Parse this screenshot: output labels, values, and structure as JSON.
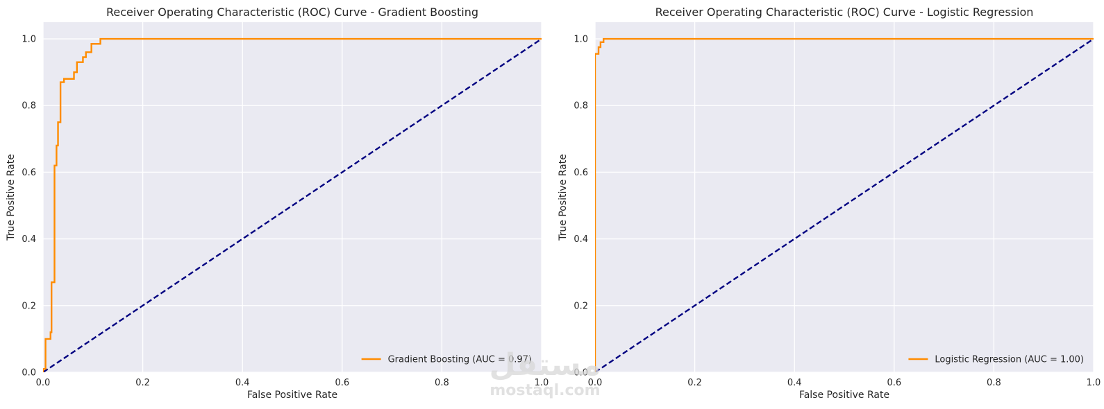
{
  "watermark": {
    "arabic": "مستقل",
    "latin": "mostaql.com"
  },
  "chart_data": [
    {
      "type": "line",
      "title": "Receiver Operating Characteristic (ROC) Curve - Gradient Boosting",
      "xlabel": "False Positive Rate",
      "ylabel": "True Positive Rate",
      "xlim": [
        0,
        1
      ],
      "ylim": [
        0,
        1.05
      ],
      "xticks": [
        "0.0",
        "0.2",
        "0.4",
        "0.6",
        "0.8",
        "1.0"
      ],
      "yticks": [
        "0.0",
        "0.2",
        "0.4",
        "0.6",
        "0.8",
        "1.0"
      ],
      "grid": true,
      "background": "#eaeaf2",
      "legend_position": "lower-right",
      "series": [
        {
          "name": "Gradient Boosting (AUC = 0.97)",
          "color": "#ff8c00",
          "style": "solid",
          "x": [
            0,
            0,
            0.005,
            0.005,
            0.015,
            0.015,
            0.017,
            0.017,
            0.023,
            0.023,
            0.027,
            0.027,
            0.03,
            0.03,
            0.035,
            0.035,
            0.042,
            0.042,
            0.062,
            0.062,
            0.068,
            0.068,
            0.08,
            0.08,
            0.086,
            0.086,
            0.097,
            0.097,
            0.115,
            0.115,
            1.0
          ],
          "y": [
            0,
            0.01,
            0.01,
            0.1,
            0.1,
            0.12,
            0.12,
            0.27,
            0.27,
            0.62,
            0.62,
            0.68,
            0.68,
            0.75,
            0.75,
            0.87,
            0.87,
            0.88,
            0.88,
            0.9,
            0.9,
            0.93,
            0.93,
            0.945,
            0.945,
            0.96,
            0.96,
            0.985,
            0.985,
            1.0,
            1.0
          ]
        },
        {
          "name": "",
          "color": "#000080",
          "style": "dashed",
          "x": [
            0,
            1
          ],
          "y": [
            0,
            1
          ]
        }
      ]
    },
    {
      "type": "line",
      "title": "Receiver Operating Characteristic (ROC) Curve - Logistic Regression",
      "xlabel": "False Positive Rate",
      "ylabel": "True Positive Rate",
      "xlim": [
        0,
        1
      ],
      "ylim": [
        0,
        1.05
      ],
      "xticks": [
        "0.0",
        "0.2",
        "0.4",
        "0.6",
        "0.8",
        "1.0"
      ],
      "yticks": [
        "0.0",
        "0.2",
        "0.4",
        "0.6",
        "0.8",
        "1.0"
      ],
      "grid": true,
      "background": "#eaeaf2",
      "legend_position": "lower-right",
      "series": [
        {
          "name": "Logistic Regression (AUC = 1.00)",
          "color": "#ff8c00",
          "style": "solid",
          "x": [
            0,
            0,
            0.007,
            0.007,
            0.011,
            0.011,
            0.017,
            0.017,
            1.0
          ],
          "y": [
            0,
            0.955,
            0.955,
            0.975,
            0.975,
            0.99,
            0.99,
            1.0,
            1.0
          ]
        },
        {
          "name": "",
          "color": "#000080",
          "style": "dashed",
          "x": [
            0,
            1
          ],
          "y": [
            0,
            1
          ]
        }
      ]
    }
  ]
}
